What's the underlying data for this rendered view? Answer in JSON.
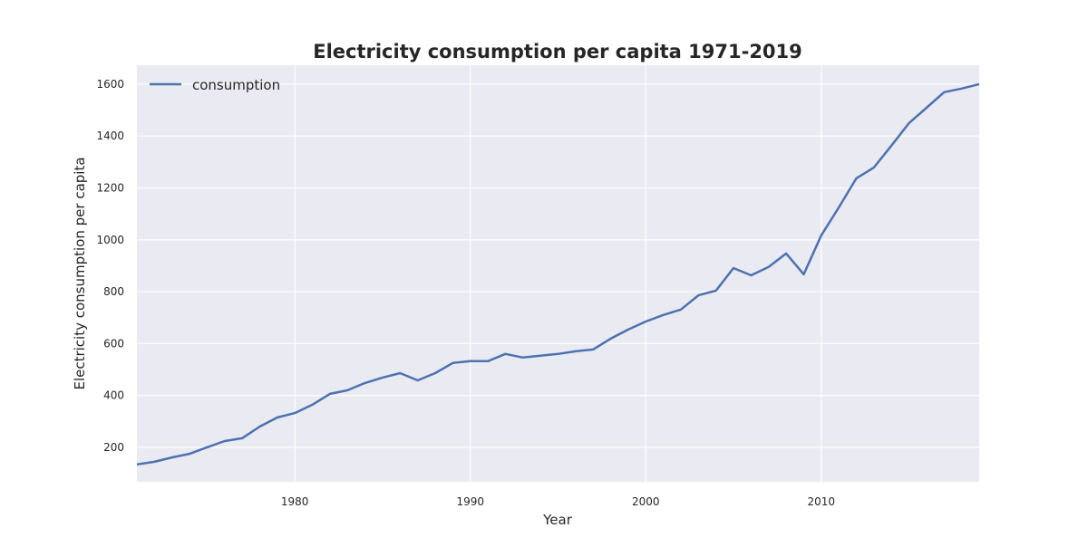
{
  "chart_data": {
    "type": "line",
    "title": "Electricity consumption per capita 1971-2019",
    "xlabel": "Year",
    "ylabel": "Electricity consumption per capita",
    "xlim": [
      1971,
      2019
    ],
    "ylim": [
      67,
      1673
    ],
    "xticks": [
      1980,
      1990,
      2000,
      2010
    ],
    "yticks": [
      200,
      400,
      600,
      800,
      1000,
      1200,
      1400,
      1600
    ],
    "grid": true,
    "legend_position": "top-left",
    "colors": {
      "background": "#eaeaf2",
      "grid": "#ffffff",
      "line": "#4c72b0"
    },
    "series": [
      {
        "name": "consumption",
        "x": [
          1971,
          1972,
          1973,
          1974,
          1975,
          1976,
          1977,
          1978,
          1979,
          1980,
          1981,
          1982,
          1983,
          1984,
          1985,
          1986,
          1987,
          1988,
          1989,
          1990,
          1991,
          1992,
          1993,
          1994,
          1995,
          1996,
          1997,
          1998,
          1999,
          2000,
          2001,
          2002,
          2003,
          2004,
          2005,
          2006,
          2007,
          2008,
          2009,
          2010,
          2011,
          2012,
          2013,
          2014,
          2015,
          2016,
          2017,
          2018,
          2019
        ],
        "values": [
          134,
          144,
          161,
          175,
          200,
          224,
          235,
          280,
          315,
          332,
          364,
          406,
          420,
          448,
          469,
          486,
          458,
          486,
          525,
          532,
          532,
          560,
          546,
          553,
          560,
          570,
          577,
          619,
          654,
          685,
          710,
          731,
          786,
          804,
          891,
          863,
          895,
          947,
          867,
          1017,
          1125,
          1237,
          1279,
          1363,
          1450,
          1509,
          1569,
          1583,
          1600
        ]
      }
    ]
  }
}
